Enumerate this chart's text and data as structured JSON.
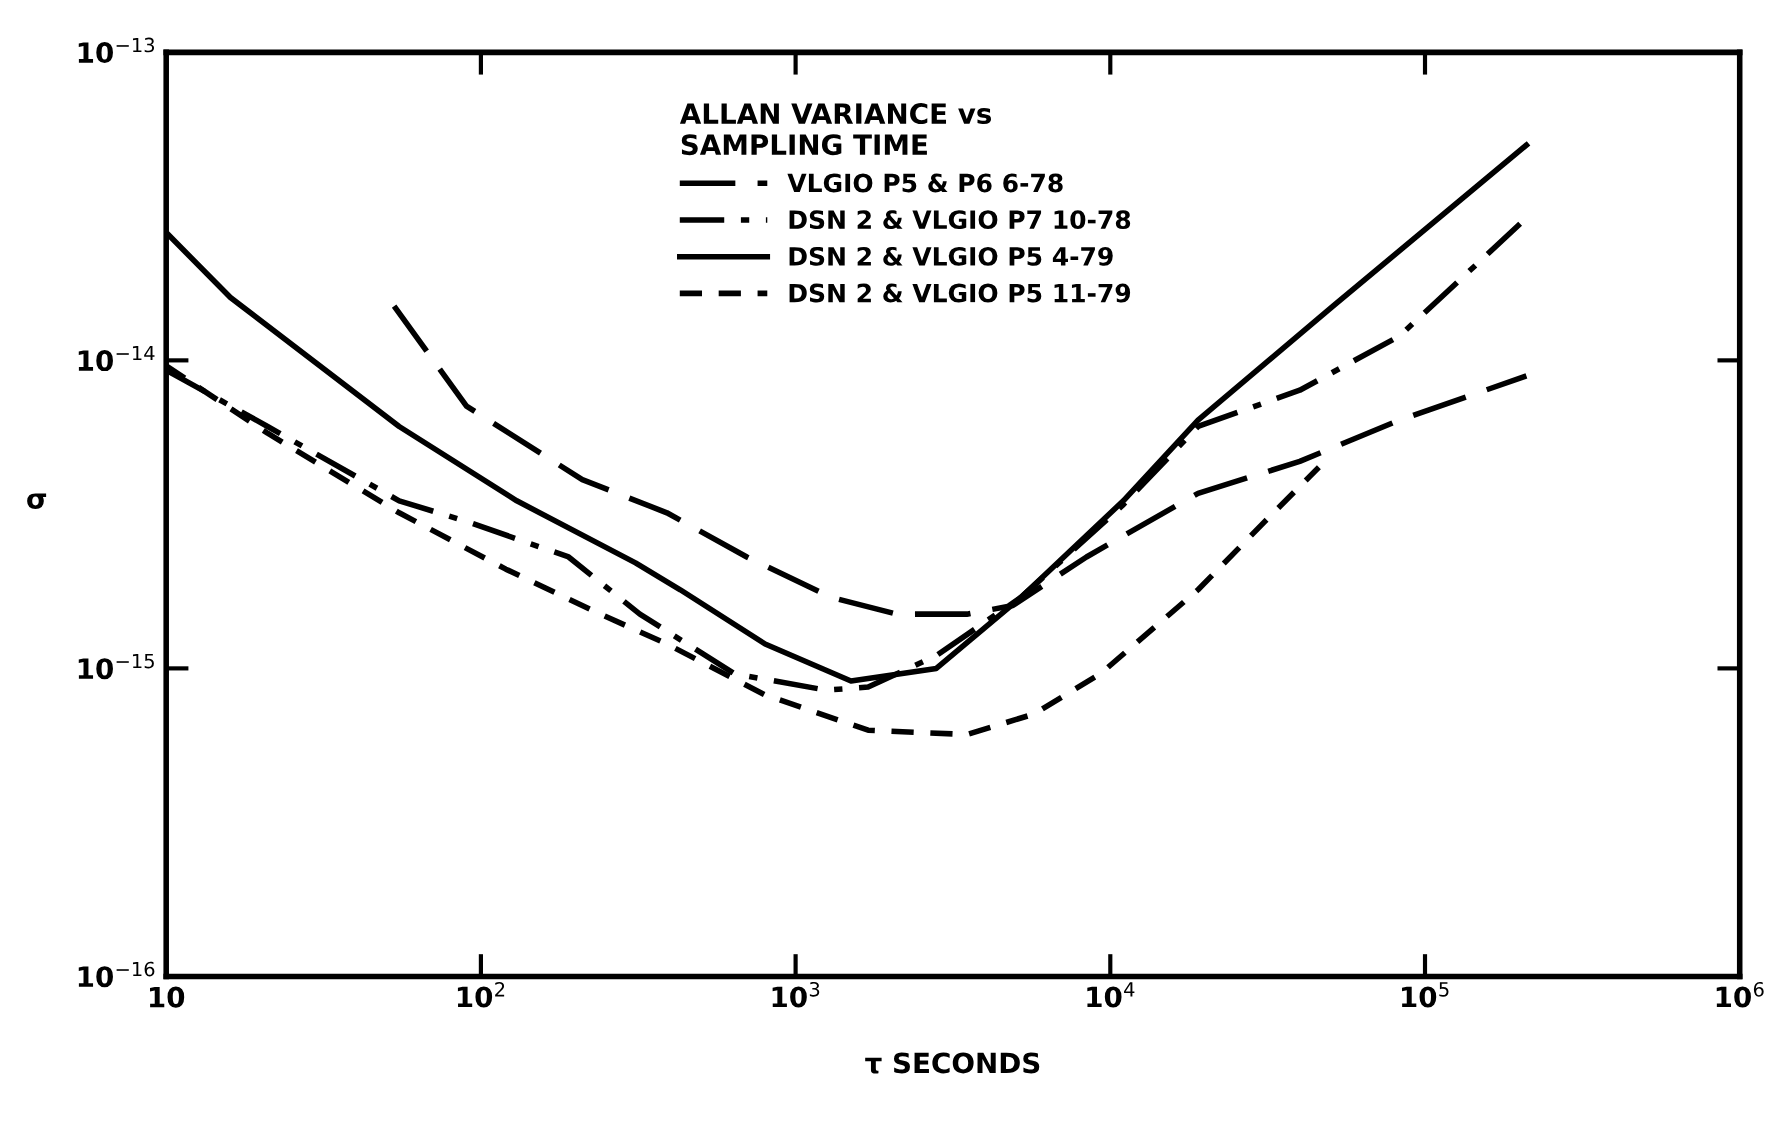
{
  "chart_data": {
    "type": "line",
    "xlabel": "τ SECONDS",
    "ylabel": "σ",
    "legend_title": "ALLAN VARIANCE vs\nSAMPLING TIME",
    "legend": "top",
    "log": "xy",
    "grid": false,
    "marker": "none",
    "xlim": [
      10,
      1000000
    ],
    "ylim": [
      1e-16,
      1e-13
    ],
    "xticks": [
      10,
      {
        "value": 100,
        "label": "10$^{2}$"
      },
      {
        "value": 1000,
        "label": "10$^{3}$"
      },
      {
        "value": 10000,
        "label": "10$^{4}$"
      },
      {
        "value": 100000,
        "label": "10$^{5}$"
      },
      {
        "value": 1000000,
        "label": "10$^{6}$"
      }
    ],
    "yticks": [
      {
        "value": 1e-16,
        "label": "10$^{−16}$"
      },
      {
        "value": 1e-15,
        "label": "10$^{−15}$"
      },
      {
        "value": 1e-14,
        "label": "10$^{−14}$"
      },
      {
        "value": 1e-13,
        "label": "10$^{−13}$"
      }
    ],
    "series": [
      {
        "name": "VLGIO P5 & P6 6-78",
        "color": "#000000",
        "line_style": "longdash",
        "x": [
          53,
          90,
          210,
          390,
          700,
          1300,
          2100,
          3500,
          4900,
          8400,
          19000,
          40000,
          83000,
          210000
        ],
        "values": [
          1.5e-14,
          7.1e-15,
          4.1e-15,
          3.2e-15,
          2.3e-15,
          1.7e-15,
          1.5e-15,
          1.5e-15,
          1.6e-15,
          2.3e-15,
          3.7e-15,
          4.7e-15,
          6.4e-15,
          8.9e-15
        ]
      },
      {
        "name": "DSN 2 & VLGIO P7 10-78",
        "color": "#000000",
        "line_style": "dashdot",
        "x": [
          10,
          21,
          55,
          90,
          190,
          320,
          640,
          1250,
          1700,
          2800,
          5200,
          11000,
          19000,
          40000,
          83000,
          210000
        ],
        "values": [
          9.3e-15,
          6.1e-15,
          3.5e-15,
          3e-15,
          2.3e-15,
          1.5e-15,
          9.6e-16,
          8.5e-16,
          8.7e-16,
          1.1e-15,
          1.7e-15,
          3.4e-15,
          6.1e-15,
          8e-15,
          1.2e-14,
          2.9e-14
        ]
      },
      {
        "name": "DSN 2 & VLGIO P5 4-79",
        "color": "#000000",
        "line_style": "solid",
        "x": [
          10,
          16,
          55,
          130,
          310,
          430,
          800,
          1500,
          2800,
          5200,
          11000,
          19000,
          51000,
          210000
        ],
        "values": [
          2.6e-14,
          1.6e-14,
          6.1e-15,
          3.5e-15,
          2.2e-15,
          1.8e-15,
          1.2e-15,
          9.1e-16,
          1e-15,
          1.7e-15,
          3.5e-15,
          6.4e-15,
          1.5e-14,
          5e-14
        ]
      },
      {
        "name": "DSN 2 & VLGIO P5 11-79",
        "color": "#000000",
        "line_style": "dashed",
        "x": [
          10,
          21,
          55,
          120,
          240,
          390,
          800,
          1700,
          3500,
          5700,
          9300,
          19000,
          31000,
          46000
        ],
        "values": [
          9.6e-15,
          5.8e-15,
          3.2e-15,
          2.1e-15,
          1.5e-15,
          1.2e-15,
          8.2e-16,
          6.3e-16,
          6.1e-16,
          7.1e-16,
          9.6e-16,
          1.8e-15,
          3e-15,
          4.5e-15
        ]
      }
    ]
  }
}
